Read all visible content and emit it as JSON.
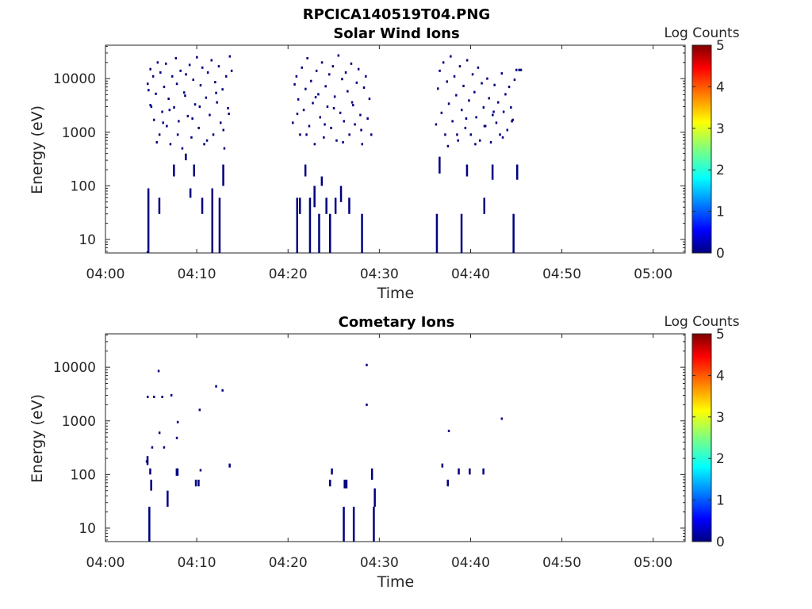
{
  "figure_title": "RPCICA140519T04.PNG",
  "chart_data": [
    {
      "type": "heatmap",
      "title": "Solar Wind Ions",
      "xlabel": "Time",
      "ylabel": "Energy (eV)",
      "y_scale": "log",
      "x_tick_labels": [
        "04:00",
        "04:10",
        "04:20",
        "04:30",
        "04:40",
        "04:50",
        "05:00"
      ],
      "y_tick_labels": [
        "10",
        "100",
        "1000",
        "10000"
      ],
      "colorbar": {
        "label": "Log Counts",
        "range": [
          0,
          5
        ],
        "tick_labels": [
          "0",
          "1",
          "2",
          "3",
          "4",
          "5"
        ]
      },
      "xlim_minutes": [
        0,
        63.5
      ],
      "ylim_eV": [
        5.6,
        42000
      ],
      "grid": false,
      "active_intervals": [
        {
          "start": "04:04:30",
          "end": "04:14:00"
        },
        {
          "start": "04:20:30",
          "end": "04:29:30"
        },
        {
          "start": "04:36:00",
          "end": "04:45:45"
        }
      ],
      "note_values": "Individual counts are sparse, low (log count near 0) and scattered across roughly 50 eV to 30 keV within each interval; vertical streaks extend to the lowest energies at some times.",
      "points": [
        [
          4.6,
          8000
        ],
        [
          4.7,
          6100
        ],
        [
          4.9,
          15000
        ],
        [
          5.0,
          3000
        ],
        [
          5.2,
          11000
        ],
        [
          5.3,
          1700
        ],
        [
          5.5,
          5200
        ],
        [
          5.7,
          20000
        ],
        [
          5.9,
          900
        ],
        [
          6.0,
          13000
        ],
        [
          6.2,
          2400
        ],
        [
          6.4,
          7000
        ],
        [
          6.6,
          19000
        ],
        [
          6.7,
          1300
        ],
        [
          6.9,
          4200
        ],
        [
          7.1,
          600
        ],
        [
          7.3,
          11000
        ],
        [
          7.5,
          2900
        ],
        [
          7.7,
          24000
        ],
        [
          7.8,
          8000
        ],
        [
          8.0,
          1600
        ],
        [
          8.2,
          14000
        ],
        [
          8.4,
          500
        ],
        [
          8.6,
          5500
        ],
        [
          8.8,
          12000
        ],
        [
          9.0,
          2000
        ],
        [
          9.2,
          18000
        ],
        [
          9.4,
          800
        ],
        [
          9.6,
          9500
        ],
        [
          9.8,
          3300
        ],
        [
          10.0,
          25000
        ],
        [
          10.2,
          1200
        ],
        [
          10.4,
          7500
        ],
        [
          10.6,
          16000
        ],
        [
          10.8,
          600
        ],
        [
          11.0,
          4400
        ],
        [
          11.2,
          13000
        ],
        [
          11.4,
          2100
        ],
        [
          11.6,
          22000
        ],
        [
          11.8,
          900
        ],
        [
          12.0,
          8600
        ],
        [
          12.2,
          3600
        ],
        [
          12.4,
          17000
        ],
        [
          12.6,
          1500
        ],
        [
          12.8,
          6300
        ],
        [
          13.0,
          500
        ],
        [
          13.2,
          11000
        ],
        [
          13.4,
          2800
        ],
        [
          13.6,
          26000
        ],
        [
          13.8,
          14000
        ],
        [
          4.9,
          3200
        ],
        [
          5.6,
          650
        ],
        [
          6.3,
          1500
        ],
        [
          7.0,
          2600
        ],
        [
          7.9,
          900
        ],
        [
          8.7,
          4800
        ],
        [
          9.5,
          1800
        ],
        [
          10.3,
          3000
        ],
        [
          11.1,
          700
        ],
        [
          12.1,
          5400
        ],
        [
          12.9,
          1100
        ],
        [
          13.5,
          2200
        ],
        [
          20.5,
          1500
        ],
        [
          20.7,
          7800
        ],
        [
          20.9,
          11000
        ],
        [
          21.1,
          4100
        ],
        [
          21.3,
          900
        ],
        [
          21.5,
          16000
        ],
        [
          21.7,
          2600
        ],
        [
          21.9,
          6400
        ],
        [
          22.1,
          24000
        ],
        [
          22.3,
          1300
        ],
        [
          22.5,
          9000
        ],
        [
          22.7,
          3500
        ],
        [
          22.9,
          600
        ],
        [
          23.1,
          14000
        ],
        [
          23.3,
          5100
        ],
        [
          23.5,
          1900
        ],
        [
          23.7,
          20000
        ],
        [
          23.9,
          800
        ],
        [
          24.1,
          7200
        ],
        [
          24.3,
          3000
        ],
        [
          24.5,
          12000
        ],
        [
          24.7,
          1200
        ],
        [
          24.9,
          17000
        ],
        [
          25.1,
          4600
        ],
        [
          25.3,
          700
        ],
        [
          25.5,
          27000
        ],
        [
          25.7,
          2300
        ],
        [
          25.9,
          9800
        ],
        [
          26.1,
          1600
        ],
        [
          26.3,
          13000
        ],
        [
          26.5,
          5800
        ],
        [
          26.7,
          900
        ],
        [
          26.9,
          19000
        ],
        [
          27.1,
          3200
        ],
        [
          27.3,
          1400
        ],
        [
          27.5,
          8400
        ],
        [
          27.7,
          15000
        ],
        [
          27.9,
          2100
        ],
        [
          28.1,
          600
        ],
        [
          28.3,
          6800
        ],
        [
          28.5,
          11000
        ],
        [
          28.7,
          1800
        ],
        [
          28.9,
          4200
        ],
        [
          29.1,
          900
        ],
        [
          21.0,
          2200
        ],
        [
          22.0,
          900
        ],
        [
          23.0,
          4500
        ],
        [
          24.0,
          1400
        ],
        [
          25.0,
          2800
        ],
        [
          26.0,
          650
        ],
        [
          27.0,
          3600
        ],
        [
          28.0,
          1100
        ],
        [
          36.2,
          1400
        ],
        [
          36.4,
          6500
        ],
        [
          36.6,
          14000
        ],
        [
          36.8,
          2300
        ],
        [
          37.0,
          20000
        ],
        [
          37.2,
          900
        ],
        [
          37.4,
          8800
        ],
        [
          37.6,
          3400
        ],
        [
          37.8,
          26000
        ],
        [
          38.0,
          1600
        ],
        [
          38.2,
          11000
        ],
        [
          38.4,
          4900
        ],
        [
          38.6,
          700
        ],
        [
          38.8,
          17000
        ],
        [
          39.0,
          2600
        ],
        [
          39.2,
          7300
        ],
        [
          39.4,
          1200
        ],
        [
          39.6,
          22000
        ],
        [
          39.8,
          3900
        ],
        [
          40.0,
          900
        ],
        [
          40.2,
          12000
        ],
        [
          40.4,
          5600
        ],
        [
          40.6,
          1900
        ],
        [
          40.8,
          16000
        ],
        [
          41.0,
          700
        ],
        [
          41.2,
          8200
        ],
        [
          41.4,
          2900
        ],
        [
          41.6,
          1300
        ],
        [
          41.8,
          10000
        ],
        [
          42.0,
          4300
        ],
        [
          42.2,
          650
        ],
        [
          42.4,
          2100
        ],
        [
          42.6,
          7600
        ],
        [
          42.8,
          1500
        ],
        [
          43.0,
          3600
        ],
        [
          43.2,
          900
        ],
        [
          43.4,
          12500
        ],
        [
          43.6,
          2400
        ],
        [
          43.8,
          5100
        ],
        [
          44.0,
          1100
        ],
        [
          44.2,
          7000
        ],
        [
          44.4,
          2900
        ],
        [
          44.6,
          1700
        ],
        [
          44.8,
          9500
        ],
        [
          45.0,
          14500
        ],
        [
          45.3,
          14500
        ],
        [
          45.5,
          14500
        ],
        [
          37.5,
          550
        ],
        [
          38.5,
          900
        ],
        [
          39.5,
          1800
        ],
        [
          40.5,
          600
        ],
        [
          41.5,
          1300
        ],
        [
          42.5,
          2400
        ],
        [
          43.5,
          800
        ],
        [
          44.5,
          1600
        ]
      ],
      "streaks": [
        [
          4.6,
          220,
          6
        ],
        [
          4.7,
          5.6,
          90
        ],
        [
          5.9,
          30,
          60
        ],
        [
          7.5,
          150,
          250
        ],
        [
          8.8,
          300,
          400
        ],
        [
          9.3,
          60,
          90
        ],
        [
          9.7,
          150,
          250
        ],
        [
          10.6,
          30,
          60
        ],
        [
          11.7,
          5.6,
          90
        ],
        [
          12.5,
          5.6,
          60
        ],
        [
          12.9,
          100,
          250
        ],
        [
          21.0,
          5.6,
          60
        ],
        [
          21.3,
          30,
          60
        ],
        [
          21.9,
          150,
          250
        ],
        [
          22.4,
          5.6,
          60
        ],
        [
          22.9,
          40,
          100
        ],
        [
          23.4,
          5.6,
          30
        ],
        [
          23.7,
          100,
          150
        ],
        [
          24.2,
          30,
          60
        ],
        [
          24.6,
          5.6,
          30
        ],
        [
          25.2,
          30,
          60
        ],
        [
          25.8,
          50,
          100
        ],
        [
          26.7,
          30,
          60
        ],
        [
          28.1,
          5.6,
          30
        ],
        [
          36.3,
          5.6,
          30
        ],
        [
          36.6,
          170,
          350
        ],
        [
          39.0,
          5.6,
          30
        ],
        [
          39.6,
          150,
          250
        ],
        [
          41.5,
          30,
          60
        ],
        [
          42.4,
          130,
          250
        ],
        [
          44.7,
          5.6,
          30
        ],
        [
          45.1,
          130,
          250
        ]
      ]
    },
    {
      "type": "heatmap",
      "title": "Cometary Ions",
      "xlabel": "Time",
      "ylabel": "Energy (eV)",
      "y_scale": "log",
      "x_tick_labels": [
        "04:00",
        "04:10",
        "04:20",
        "04:30",
        "04:40",
        "04:50",
        "05:00"
      ],
      "y_tick_labels": [
        "10",
        "100",
        "1000",
        "10000"
      ],
      "colorbar": {
        "label": "Log Counts",
        "range": [
          0,
          5
        ],
        "tick_labels": [
          "0",
          "1",
          "2",
          "3",
          "4",
          "5"
        ]
      },
      "xlim_minutes": [
        0,
        63.5
      ],
      "ylim_eV": [
        5.6,
        42000
      ],
      "grid": false,
      "points": [
        [
          4.6,
          2800
        ],
        [
          5.3,
          2800
        ],
        [
          5.8,
          8500
        ],
        [
          5.9,
          600
        ],
        [
          6.2,
          2800
        ],
        [
          6.4,
          320
        ],
        [
          7.2,
          3000
        ],
        [
          7.8,
          480
        ],
        [
          7.9,
          950
        ],
        [
          10.3,
          1600
        ],
        [
          12.1,
          4400
        ],
        [
          12.8,
          3700
        ],
        [
          28.6,
          11000
        ],
        [
          28.6,
          2000
        ],
        [
          37.6,
          650
        ],
        [
          43.4,
          1100
        ],
        [
          5.1,
          320
        ],
        [
          10.4,
          120
        ],
        [
          4.5,
          175
        ]
      ],
      "streaks": [
        [
          4.6,
          150,
          220
        ],
        [
          4.8,
          5.6,
          25
        ],
        [
          4.9,
          100,
          130
        ],
        [
          5.0,
          50,
          80
        ],
        [
          6.8,
          25,
          50
        ],
        [
          7.8,
          95,
          130
        ],
        [
          7.9,
          95,
          130
        ],
        [
          9.9,
          60,
          80
        ],
        [
          10.2,
          60,
          80
        ],
        [
          13.6,
          135,
          160
        ],
        [
          24.6,
          60,
          80
        ],
        [
          24.8,
          100,
          130
        ],
        [
          26.1,
          5.6,
          25
        ],
        [
          26.2,
          55,
          80
        ],
        [
          26.4,
          55,
          80
        ],
        [
          27.2,
          5.6,
          25
        ],
        [
          29.2,
          80,
          130
        ],
        [
          29.4,
          5.6,
          25
        ],
        [
          29.5,
          25,
          55
        ],
        [
          36.9,
          135,
          160
        ],
        [
          37.5,
          60,
          80
        ],
        [
          38.7,
          100,
          130
        ],
        [
          39.9,
          100,
          130
        ],
        [
          41.4,
          100,
          130
        ]
      ]
    }
  ]
}
